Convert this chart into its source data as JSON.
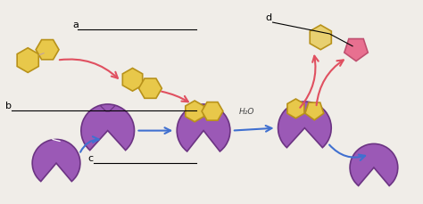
{
  "bg_color": "#f0ede8",
  "purple": "#9B59B6",
  "purple_dark": "#6C3483",
  "gold": "#E8C84A",
  "gold_outline": "#B8921A",
  "pink": "#E87090",
  "pink_dark": "#C05070",
  "red_arrow": "#E05060",
  "blue_arrow": "#4070D0",
  "label_a": "a",
  "label_b": "b",
  "label_c": "c",
  "label_d": "d",
  "h2o": "H₂O"
}
